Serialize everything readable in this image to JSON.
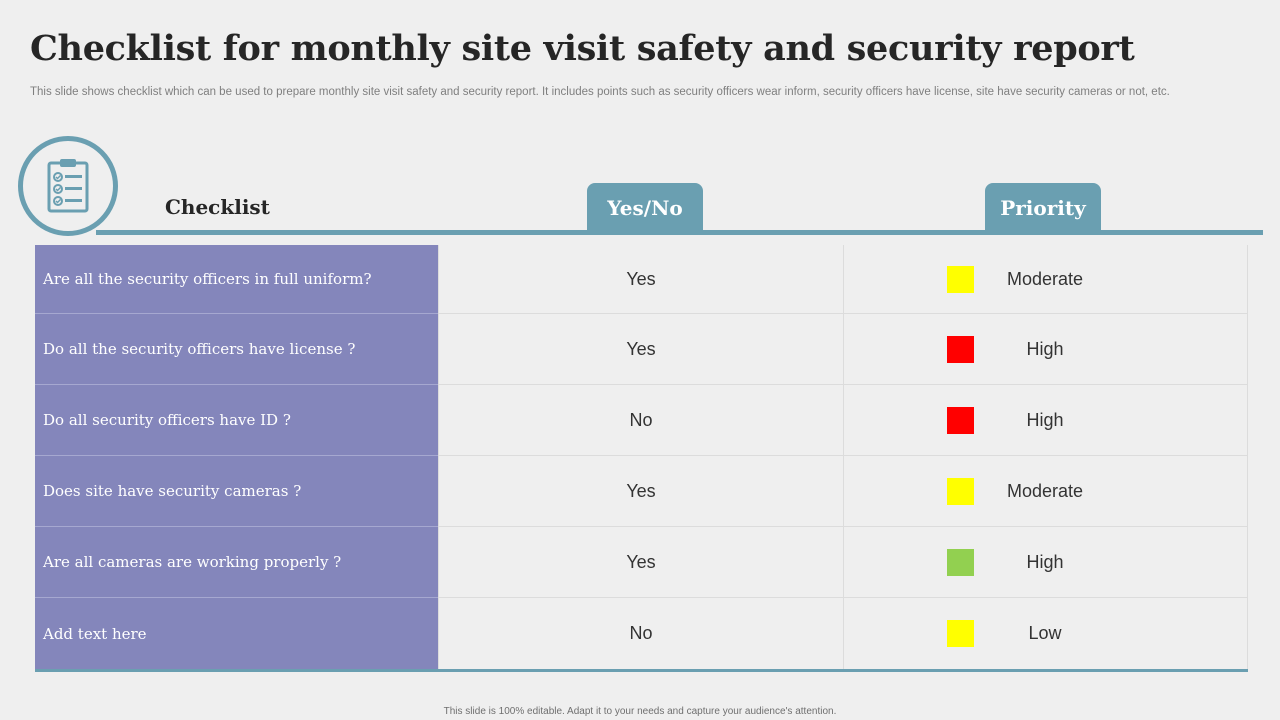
{
  "title": "Checklist for monthly site visit safety and security report",
  "subtitle": "This slide shows checklist which can be used to prepare monthly site visit safety and security report. It includes points such as security officers wear inform, security officers have license, site have security cameras or not, etc.",
  "icon": "clipboard-checklist-icon",
  "headers": {
    "checklist": "Checklist",
    "yes_no": "Yes/No",
    "priority": "Priority"
  },
  "colors": {
    "accent": "#6a9fb1",
    "question_bg": "#8486bb",
    "moderate": "#ffff00",
    "high_red": "#ff0000",
    "high_green": "#92d050",
    "low": "#ffff00"
  },
  "rows": [
    {
      "question": "Are all the security officers in full uniform?",
      "answer": "Yes",
      "priority": "Moderate",
      "color": "#ffff00"
    },
    {
      "question": "Do all the security officers have license ?",
      "answer": "Yes",
      "priority": "High",
      "color": "#ff0000"
    },
    {
      "question": "Do all security officers have ID ?",
      "answer": "No",
      "priority": "High",
      "color": "#ff0000"
    },
    {
      "question": "Does site have security cameras ?",
      "answer": "Yes",
      "priority": "Moderate",
      "color": "#ffff00"
    },
    {
      "question": "Are all cameras are working properly ?",
      "answer": "Yes",
      "priority": "High",
      "color": "#92d050"
    },
    {
      "question": "Add text here",
      "answer": "No",
      "priority": "Low",
      "color": "#ffff00"
    }
  ],
  "footer": "This slide is 100% editable.  Adapt it to your needs and capture your audience's attention."
}
